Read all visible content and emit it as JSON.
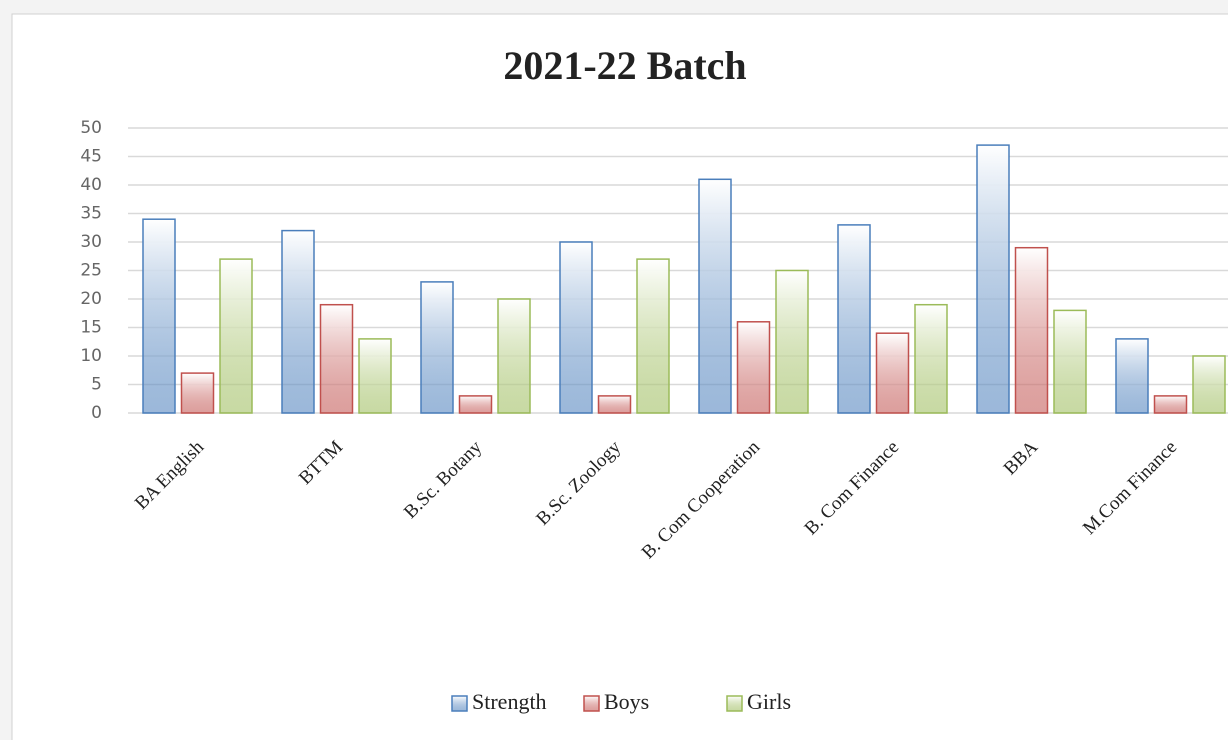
{
  "chart_data": {
    "type": "bar",
    "title": "2021-22 Batch",
    "categories": [
      "BA English",
      "BTTM",
      "B.Sc. Botany",
      "B.Sc. Zoology",
      "B. Com Cooperation",
      "B. Com Finance",
      "BBA",
      "M.Com Finance"
    ],
    "series": [
      {
        "name": "Strength",
        "color": "#4a7ebb",
        "values": [
          34,
          32,
          23,
          30,
          41,
          33,
          47,
          13
        ]
      },
      {
        "name": "Boys",
        "color": "#c0504d",
        "values": [
          7,
          19,
          3,
          3,
          16,
          14,
          29,
          3
        ]
      },
      {
        "name": "Girls",
        "color": "#9bbb59",
        "values": [
          27,
          13,
          20,
          27,
          25,
          19,
          18,
          10
        ]
      }
    ],
    "ylim": [
      0,
      50
    ],
    "yticks": [
      0,
      5,
      10,
      15,
      20,
      25,
      30,
      35,
      40,
      45,
      50
    ],
    "grid": true,
    "legend": "bottom"
  }
}
